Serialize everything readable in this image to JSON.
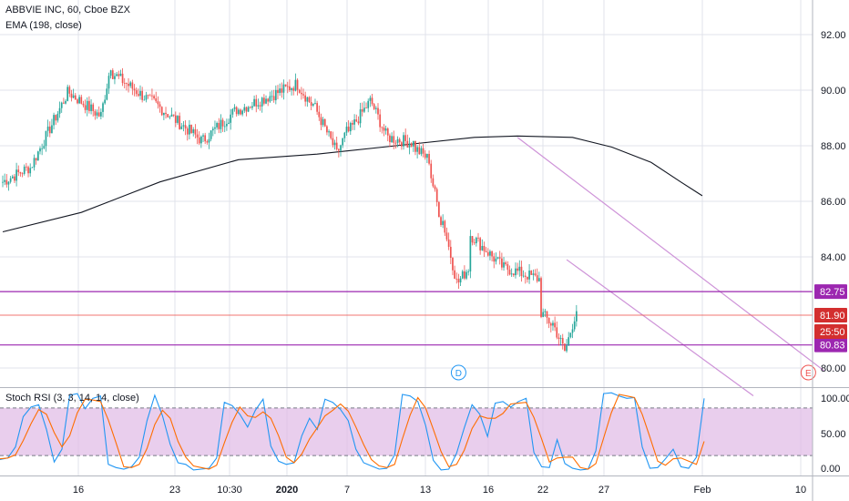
{
  "legend": {
    "symbol": "ABBVIE INC, 60, Cboe BZX",
    "ema": "EMA (198, close)",
    "stoch": "Stoch RSI (3, 3, 14, 14, close)"
  },
  "colors": {
    "up": "#26a69a",
    "down": "#ef5350",
    "ema": "#131722",
    "channel": "#ce93d8",
    "level": "#9c27b0",
    "current": "#ef5350",
    "k_line": "#2196f3",
    "d_line": "#ff6d00",
    "band": "#e1bee7",
    "grid": "#e0e3eb"
  },
  "chart_data": [
    {
      "type": "candlestick",
      "title": "ABBVIE INC, 60, Cboe BZX",
      "ylim": [
        79.3,
        93.3
      ],
      "y_ticks": [
        "92.00",
        "90.00",
        "88.00",
        "86.00",
        "84.00",
        "80.00"
      ],
      "x_ticks": [
        "16",
        "23",
        "10:30",
        "2020",
        "7",
        "13",
        "16",
        "22",
        "27",
        "Feb",
        "10"
      ],
      "grid": true,
      "price_segments": [
        {
          "bars": 14,
          "from": 86.7,
          "to": 87.2
        },
        {
          "bars": 20,
          "from": 87.2,
          "to": 89.9
        },
        {
          "bars": 16,
          "from": 89.9,
          "to": 89.1
        },
        {
          "bars": 6,
          "from": 89.1,
          "to": 90.9
        },
        {
          "bars": 20,
          "from": 90.6,
          "to": 89.6
        },
        {
          "bars": 26,
          "from": 89.6,
          "to": 88.2
        },
        {
          "bars": 18,
          "from": 88.2,
          "to": 89.3
        },
        {
          "bars": 30,
          "from": 89.3,
          "to": 90.2
        },
        {
          "bars": 8,
          "from": 90.2,
          "to": 89.5
        },
        {
          "bars": 12,
          "from": 89.5,
          "to": 87.9
        },
        {
          "bars": 6,
          "from": 87.7,
          "to": 88.5
        },
        {
          "bars": 12,
          "from": 88.5,
          "to": 89.6
        },
        {
          "bars": 8,
          "from": 89.5,
          "to": 88.4
        },
        {
          "bars": 14,
          "from": 88.3,
          "to": 88.1
        },
        {
          "bars": 8,
          "from": 87.9,
          "to": 87.5
        },
        {
          "bars": 6,
          "from": 86.9,
          "to": 85.3
        },
        {
          "bars": 8,
          "from": 85.3,
          "to": 83.1
        },
        {
          "bars": 6,
          "from": 83.1,
          "to": 83.6
        },
        {
          "bars": 18,
          "from": 84.8,
          "to": 83.6
        },
        {
          "bars": 18,
          "from": 83.6,
          "to": 83.2
        },
        {
          "bars": 6,
          "from": 82.0,
          "to": 81.6
        },
        {
          "bars": 7,
          "from": 81.6,
          "to": 80.6
        },
        {
          "bars": 6,
          "from": 80.8,
          "to": 82.1
        }
      ],
      "ema_points": [
        {
          "bar": 0,
          "value": 84.9
        },
        {
          "bar": 40,
          "value": 85.6
        },
        {
          "bar": 80,
          "value": 86.7
        },
        {
          "bar": 120,
          "value": 87.5
        },
        {
          "bar": 160,
          "value": 87.7
        },
        {
          "bar": 200,
          "value": 88.0
        },
        {
          "bar": 240,
          "value": 88.3
        },
        {
          "bar": 262,
          "value": 88.35
        },
        {
          "bar": 290,
          "value": 88.3
        },
        {
          "bar": 310,
          "value": 87.95
        },
        {
          "bar": 330,
          "value": 87.4
        },
        {
          "bar": 345,
          "value": 86.7
        },
        {
          "bar": 356,
          "value": 86.2
        }
      ],
      "channel_lines": [
        {
          "bar1": 262,
          "v1": 88.3,
          "bar2": 418,
          "v2": 79.9
        },
        {
          "bar1": 287,
          "v1": 83.9,
          "bar2": 382,
          "v2": 79.0
        }
      ],
      "horizontal_levels": [
        {
          "value": 82.75,
          "label": "82.75"
        },
        {
          "value": 80.83,
          "label": "80.83"
        }
      ],
      "current_price": {
        "value": 81.9,
        "label": "81.90",
        "countdown": "25:50"
      },
      "markers": [
        {
          "label": "D",
          "bar": 232,
          "color": "#2196f3"
        },
        {
          "label": "E",
          "bar": 410,
          "color": "#ef5350"
        }
      ]
    },
    {
      "type": "line",
      "title": "Stoch RSI (3, 3, 14, 14, close)",
      "ylim": [
        -5,
        105
      ],
      "y_ticks": [
        "100.00",
        "50.00",
        "0.00"
      ],
      "bands": [
        20,
        80
      ],
      "series": [
        {
          "name": "K",
          "color": "#2196f3",
          "values": [
            15,
            17,
            31,
            69,
            81,
            84,
            53,
            12,
            28,
            96,
            98,
            79,
            92,
            95,
            9,
            5,
            3,
            6,
            18,
            64,
            96,
            70,
            34,
            11,
            9,
            2,
            3,
            4,
            17,
            87,
            83,
            72,
            56,
            77,
            91,
            32,
            13,
            9,
            11,
            45,
            67,
            53,
            91,
            87,
            78,
            64,
            28,
            11,
            7,
            3,
            4,
            21,
            97,
            95,
            88,
            58,
            14,
            2,
            3,
            23,
            55,
            84,
            72,
            44,
            86,
            88,
            81,
            88,
            92,
            24,
            6,
            5,
            40,
            10,
            4,
            2,
            3,
            26,
            98,
            99,
            95,
            92,
            93,
            31,
            4,
            5,
            16,
            28,
            6,
            4,
            18,
            92
          ]
        },
        {
          "name": "D",
          "color": "#ff6d00",
          "values": [
            16,
            17,
            21,
            39,
            60,
            78,
            72,
            49,
            31,
            45,
            74,
            91,
            90,
            88,
            65,
            36,
            6,
            5,
            9,
            29,
            59,
            77,
            67,
            38,
            18,
            7,
            5,
            3,
            8,
            36,
            62,
            81,
            70,
            68,
            75,
            67,
            45,
            18,
            11,
            22,
            41,
            55,
            70,
            77,
            85,
            76,
            56,
            34,
            15,
            7,
            5,
            9,
            41,
            71,
            93,
            80,
            53,
            25,
            6,
            9,
            27,
            54,
            70,
            67,
            67,
            73,
            85,
            86,
            87,
            68,
            41,
            12,
            17,
            18,
            18,
            5,
            3,
            10,
            42,
            74,
            97,
            95,
            93,
            72,
            43,
            13,
            8,
            16,
            17,
            13,
            9,
            38
          ]
        }
      ]
    }
  ]
}
